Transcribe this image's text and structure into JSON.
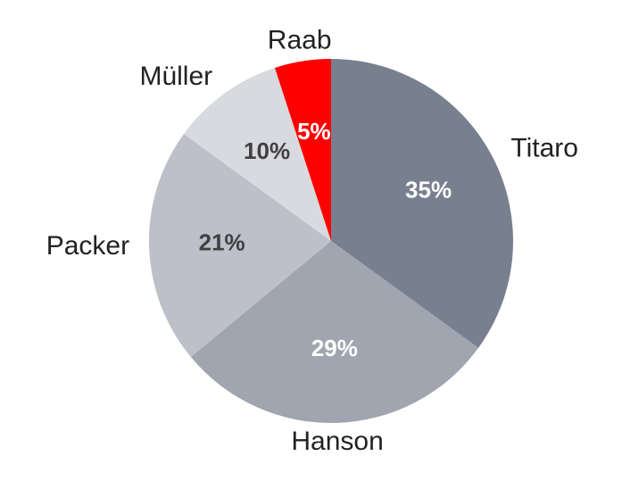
{
  "chart_data": {
    "type": "pie",
    "categories": [
      "Titaro",
      "Hanson",
      "Packer",
      "Müller",
      "Raab"
    ],
    "values": [
      35,
      29,
      21,
      10,
      5
    ],
    "value_labels": [
      "35%",
      "29%",
      "21%",
      "10%",
      "5%"
    ],
    "colors": [
      "#78808f",
      "#a0a5b0",
      "#bdc0c8",
      "#d8dadf",
      "#ff0000"
    ],
    "label_colors": [
      "#ffffff",
      "#ffffff",
      "#404040",
      "#404040",
      "#ffffff"
    ]
  }
}
